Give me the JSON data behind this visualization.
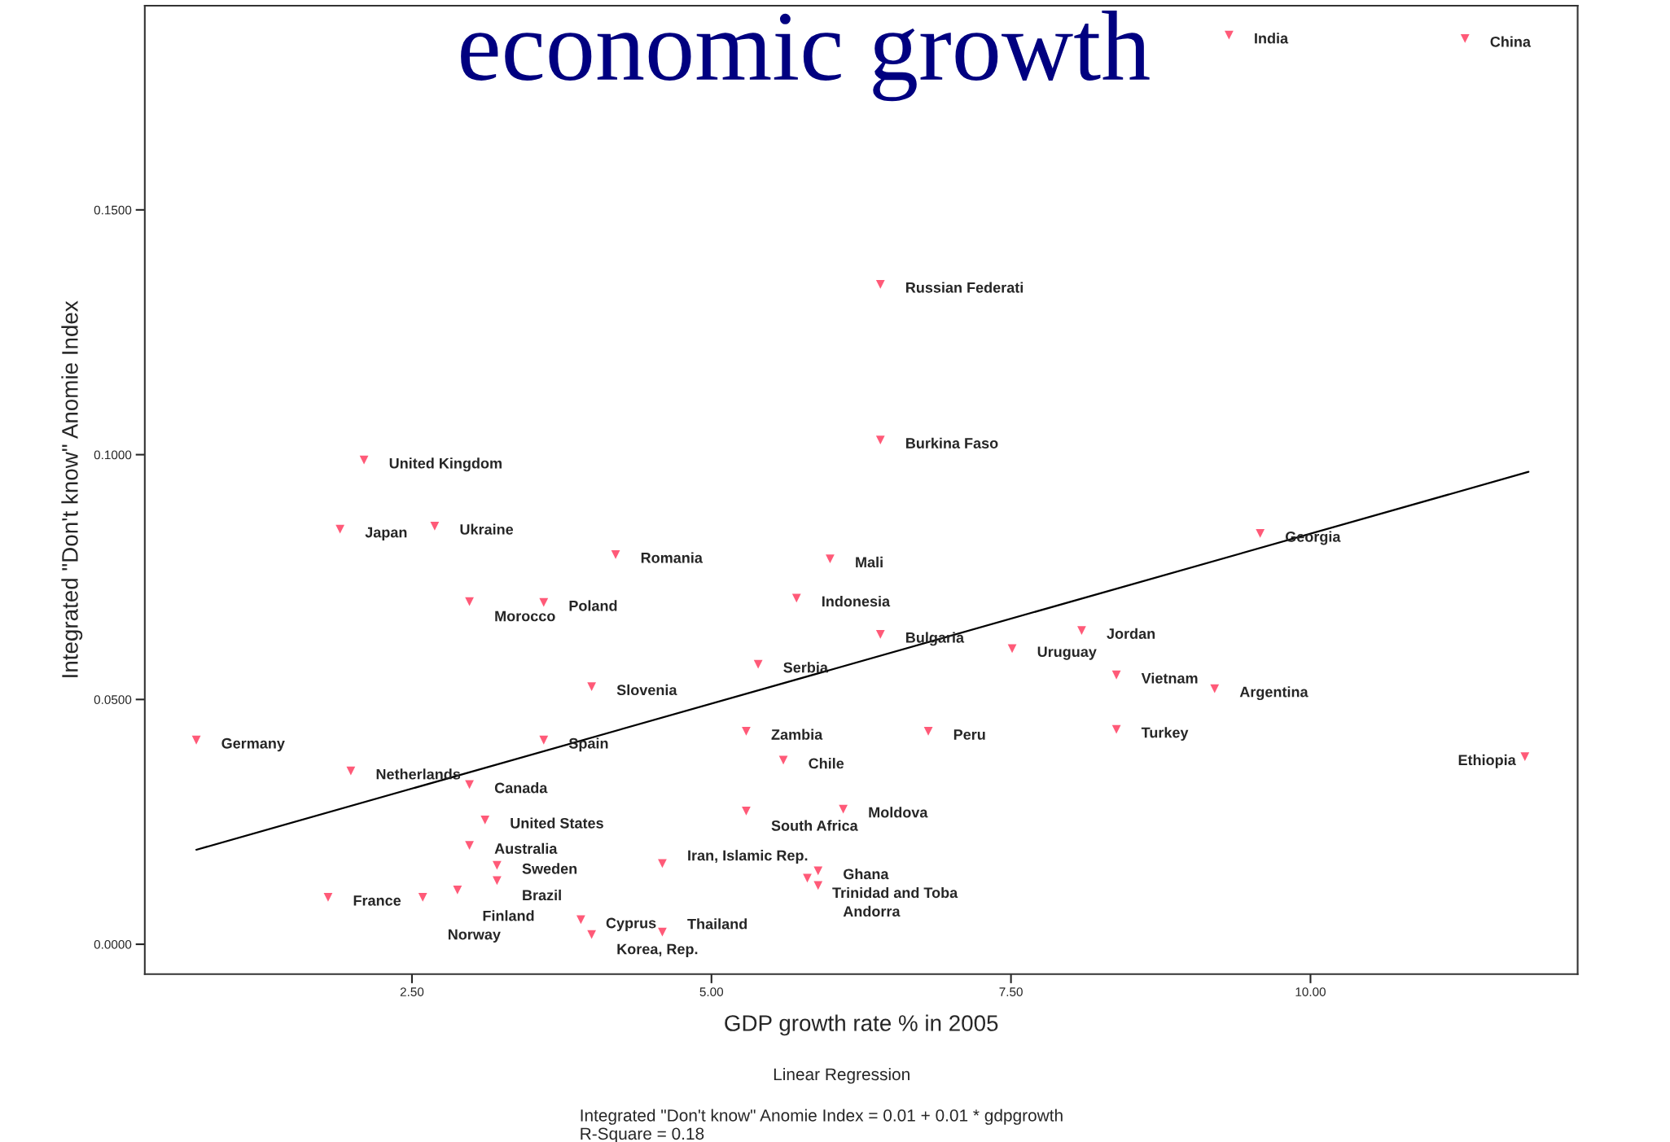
{
  "chart_data": {
    "type": "scatter",
    "title": "economic growth",
    "xlabel": "GDP growth rate % in 2005",
    "ylabel": "Integrated \"Don't know\" Anomie Index",
    "xlim": [
      0.27,
      12.23
    ],
    "ylim": [
      -0.0061,
      0.1917
    ],
    "xticks": [
      {
        "value": 2.5,
        "label": "2.50"
      },
      {
        "value": 5,
        "label": "5.00"
      },
      {
        "value": 7.5,
        "label": "7.50"
      },
      {
        "value": 10,
        "label": "10.00"
      }
    ],
    "yticks": [
      {
        "value": 0,
        "label": "0.0000"
      },
      {
        "value": 0.05,
        "label": "0.0500"
      },
      {
        "value": 0.1,
        "label": "0.1000"
      },
      {
        "value": 0.15,
        "label": "0.1500"
      }
    ],
    "grid": false,
    "legend": false,
    "series": [
      {
        "type": "scatter",
        "color": "#ff5a78",
        "marker": "triangle",
        "x": [
          9.32,
          11.29,
          6.41,
          6.41,
          2.1,
          1.9,
          2.69,
          4.2,
          5.99,
          2.98,
          3.6,
          5.71,
          6.41,
          7.51,
          8.09,
          9.58,
          8.38,
          9.2,
          5.39,
          4.0,
          0.7,
          3.6,
          5.29,
          6.81,
          8.38,
          11.79,
          5.6,
          1.99,
          2.98,
          3.11,
          5.29,
          6.1,
          2.98,
          3.21,
          3.21,
          2.88,
          4.59,
          5.89,
          5.8,
          5.89,
          1.8,
          2.59,
          3.91,
          4.0,
          4.59
        ],
        "values": [
          0.1857,
          0.185,
          0.1348,
          0.103,
          0.0989,
          0.0848,
          0.0854,
          0.0796,
          0.0787,
          0.07,
          0.0698,
          0.0707,
          0.0633,
          0.0604,
          0.0641,
          0.0839,
          0.055,
          0.0522,
          0.0572,
          0.0526,
          0.0417,
          0.0417,
          0.0435,
          0.0435,
          0.0439,
          0.0383,
          0.0376,
          0.0354,
          0.0326,
          0.0254,
          0.0272,
          0.0276,
          0.0202,
          0.0161,
          0.013,
          0.0111,
          0.0165,
          0.015,
          0.0135,
          0.012,
          0.0096,
          0.0096,
          0.005,
          0.002,
          0.0025
        ]
      },
      {
        "type": "line",
        "color": "#000000",
        "x": [
          0.7,
          11.82
        ],
        "values": [
          0.0193,
          0.0965
        ]
      }
    ],
    "annotations": [
      {
        "text": "India",
        "x": 9.32,
        "y": 0.1857
      },
      {
        "text": "China",
        "x": 11.29,
        "y": 0.185
      },
      {
        "text": "Russian Federati",
        "x": 6.41,
        "y": 0.1348
      },
      {
        "text": "Burkina Faso",
        "x": 6.41,
        "y": 0.103
      },
      {
        "text": "United Kingdom",
        "x": 2.1,
        "y": 0.0989
      },
      {
        "text": "Japan",
        "x": 1.9,
        "y": 0.0848
      },
      {
        "text": "Ukraine",
        "x": 2.69,
        "y": 0.0854
      },
      {
        "text": "Romania",
        "x": 4.2,
        "y": 0.0796
      },
      {
        "text": "Mali",
        "x": 5.99,
        "y": 0.0787
      },
      {
        "text": "Morocco",
        "x": 2.98,
        "y": 0.07
      },
      {
        "text": "Poland",
        "x": 3.6,
        "y": 0.0698
      },
      {
        "text": "Indonesia",
        "x": 5.71,
        "y": 0.0707
      },
      {
        "text": "Bulgaria",
        "x": 6.41,
        "y": 0.0633
      },
      {
        "text": "Uruguay",
        "x": 7.51,
        "y": 0.0604
      },
      {
        "text": "Jordan",
        "x": 8.09,
        "y": 0.0641
      },
      {
        "text": "Georgia",
        "x": 9.58,
        "y": 0.0839
      },
      {
        "text": "Vietnam",
        "x": 8.38,
        "y": 0.055
      },
      {
        "text": "Argentina",
        "x": 9.2,
        "y": 0.0522
      },
      {
        "text": "Serbia",
        "x": 5.39,
        "y": 0.0572
      },
      {
        "text": "Slovenia",
        "x": 4.0,
        "y": 0.0526
      },
      {
        "text": "Germany",
        "x": 0.7,
        "y": 0.0417
      },
      {
        "text": "Spain",
        "x": 3.6,
        "y": 0.0417
      },
      {
        "text": "Zambia",
        "x": 5.29,
        "y": 0.0435
      },
      {
        "text": "Peru",
        "x": 6.81,
        "y": 0.0435
      },
      {
        "text": "Turkey",
        "x": 8.38,
        "y": 0.0439
      },
      {
        "text": "Ethiopia",
        "x": 11.79,
        "y": 0.0383
      },
      {
        "text": "Chile",
        "x": 5.6,
        "y": 0.0376
      },
      {
        "text": "Netherlands",
        "x": 1.99,
        "y": 0.0354
      },
      {
        "text": "Canada",
        "x": 2.98,
        "y": 0.0326
      },
      {
        "text": "United States",
        "x": 3.11,
        "y": 0.0254
      },
      {
        "text": "South Africa",
        "x": 5.29,
        "y": 0.0272
      },
      {
        "text": "Moldova",
        "x": 6.1,
        "y": 0.0276
      },
      {
        "text": "Australia",
        "x": 2.98,
        "y": 0.0202
      },
      {
        "text": "Sweden",
        "x": 3.21,
        "y": 0.0161
      },
      {
        "text": "Brazil",
        "x": 3.21,
        "y": 0.013
      },
      {
        "text": "Finland",
        "x": 2.88,
        "y": 0.0111
      },
      {
        "text": "Iran, Islamic Rep.",
        "x": 4.59,
        "y": 0.0165
      },
      {
        "text": "Ghana",
        "x": 5.89,
        "y": 0.015
      },
      {
        "text": "Trinidad and Toba",
        "x": 5.8,
        "y": 0.0135
      },
      {
        "text": "Andorra",
        "x": 5.89,
        "y": 0.012
      },
      {
        "text": "France",
        "x": 1.8,
        "y": 0.0096
      },
      {
        "text": "Norway",
        "x": 2.59,
        "y": 0.0096
      },
      {
        "text": "Cyprus",
        "x": 3.91,
        "y": 0.005
      },
      {
        "text": "Korea, Rep.",
        "x": 4.0,
        "y": 0.002
      },
      {
        "text": "Thailand",
        "x": 4.59,
        "y": 0.0025
      },
      "Linear Regression",
      "Integrated \"Don't know\" Anomie Index = 0.01 + 0.01 * gdpgrowth",
      "R-Square = 0.18"
    ]
  }
}
